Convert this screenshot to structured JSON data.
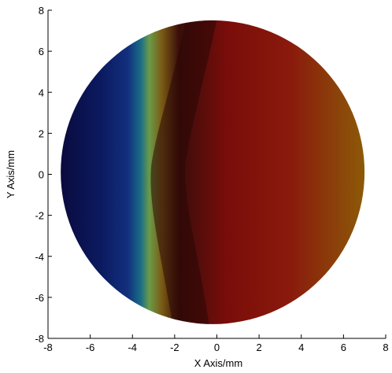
{
  "chart_data": {
    "type": "heatmap",
    "xlabel": "X Axis/mm",
    "ylabel": "Y Axis/mm",
    "xlim": [
      -8,
      8
    ],
    "ylim": [
      -8,
      8
    ],
    "x_ticks": [
      -8,
      -6,
      -4,
      -2,
      0,
      2,
      4,
      6,
      8
    ],
    "y_ticks": [
      -8,
      -6,
      -4,
      -2,
      0,
      2,
      4,
      6,
      8
    ],
    "x_tick_labels": [
      "-8",
      "-6",
      "-4",
      "-2",
      "0",
      "2",
      "4",
      "6",
      "8"
    ],
    "y_tick_labels": [
      "-8",
      "-6",
      "-4",
      "-2",
      "0",
      "2",
      "4",
      "6",
      "8"
    ],
    "grid": false,
    "region": {
      "shape": "circle",
      "center": [
        -0.2,
        0.1
      ],
      "radius": 7.3
    },
    "colormap": [
      "#0a0a3c",
      "#0b1a60",
      "#12307e",
      "#1a6e86",
      "#6a9a48",
      "#7a5a14",
      "#3a0d0a",
      "#7a0d0a",
      "#8a1a0c",
      "#8c5a08"
    ],
    "colormap_stops": [
      -7.5,
      -5.5,
      -4.2,
      -3.6,
      -3.2,
      -2.6,
      -1.8,
      0.5,
      3.5,
      7.0
    ]
  }
}
